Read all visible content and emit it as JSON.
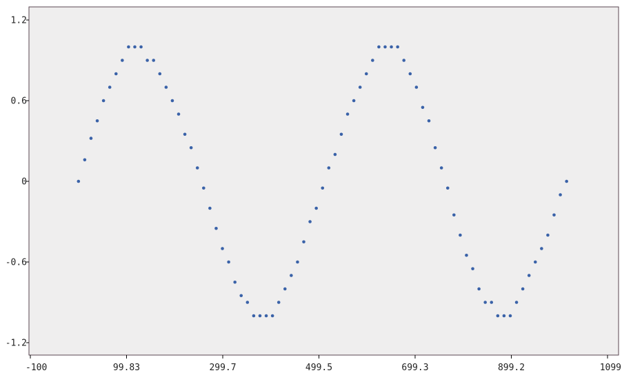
{
  "chart_data": {
    "type": "scatter",
    "title": "",
    "xlabel": "",
    "ylabel": "",
    "xlim": [
      -100,
      1099
    ],
    "ylim": [
      -1.2,
      1.2
    ],
    "x_ticks": [
      {
        "value": -100,
        "label": "-100"
      },
      {
        "value": 99.83,
        "label": "99.83"
      },
      {
        "value": 299.7,
        "label": "299.7"
      },
      {
        "value": 499.5,
        "label": "499.5"
      },
      {
        "value": 699.3,
        "label": "699.3"
      },
      {
        "value": 899.2,
        "label": "899.2"
      },
      {
        "value": 1099,
        "label": "1099"
      }
    ],
    "y_ticks": [
      {
        "value": 1.2,
        "label": "1.2"
      },
      {
        "value": 0.6,
        "label": "0.6"
      },
      {
        "value": 0,
        "label": "0"
      },
      {
        "value": -0.6,
        "label": "-0.6"
      },
      {
        "value": -1.2,
        "label": "-1.2"
      }
    ],
    "grid": false,
    "marker_color": "#3a62a8",
    "background_color": "#efeeee",
    "series": [
      {
        "x": [
          0,
          13,
          26,
          39,
          52,
          65,
          78,
          91,
          104,
          117,
          130,
          143,
          156,
          169,
          182,
          195,
          208,
          221,
          234,
          247,
          260,
          273,
          286,
          299,
          312,
          325,
          338,
          351,
          364,
          377,
          390,
          403,
          416,
          429,
          442,
          455,
          468,
          481,
          494,
          507,
          520,
          533,
          546,
          559,
          572,
          585,
          598,
          611,
          624,
          637,
          650,
          663,
          676,
          689,
          702,
          715,
          728,
          741,
          754,
          767,
          780,
          793,
          806,
          819,
          832,
          845,
          858,
          871,
          884,
          897,
          910,
          923,
          936,
          949,
          962,
          975,
          988,
          1001,
          1014
        ],
        "y": [
          0,
          0.16,
          0.32,
          0.45,
          0.6,
          0.7,
          0.8,
          0.9,
          1,
          1,
          1,
          0.9,
          0.9,
          0.8,
          0.7,
          0.6,
          0.5,
          0.35,
          0.25,
          0.1,
          -0.05,
          -0.2,
          -0.35,
          -0.5,
          -0.6,
          -0.75,
          -0.85,
          -0.9,
          -1,
          -1,
          -1,
          -1,
          -0.9,
          -0.8,
          -0.7,
          -0.6,
          -0.45,
          -0.3,
          -0.2,
          -0.05,
          0.1,
          0.2,
          0.35,
          0.5,
          0.6,
          0.7,
          0.8,
          0.9,
          1,
          1,
          1,
          1,
          0.9,
          0.8,
          0.7,
          0.55,
          0.45,
          0.25,
          0.1,
          -0.05,
          -0.25,
          -0.4,
          -0.55,
          -0.65,
          -0.8,
          -0.9,
          -0.9,
          -1,
          -1,
          -1,
          -0.9,
          -0.8,
          -0.7,
          -0.6,
          -0.5,
          -0.4,
          -0.25,
          -0.1,
          0
        ]
      }
    ]
  }
}
